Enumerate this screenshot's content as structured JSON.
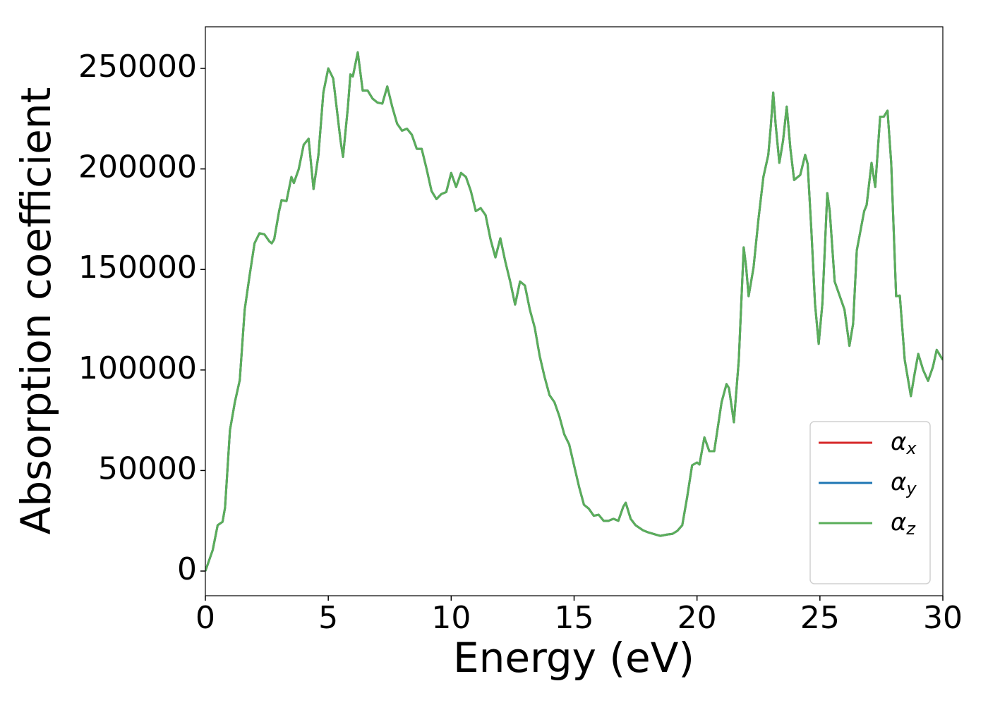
{
  "chart_data": {
    "type": "line",
    "xlabel": "Energy (eV)",
    "ylabel": "Absorption coefficient",
    "xlim": [
      0,
      30
    ],
    "xticks": [
      0,
      5,
      10,
      15,
      20,
      25,
      30
    ],
    "ylim": [
      -12270,
      270690
    ],
    "yticks": [
      0,
      50000,
      100000,
      150000,
      200000,
      250000
    ],
    "legend": "lower right",
    "x": [
      0,
      0.3,
      0.5,
      0.7,
      0.8,
      1.0,
      1.2,
      1.4,
      1.6,
      1.8,
      2.0,
      2.2,
      2.4,
      2.6,
      2.7,
      2.8,
      3.0,
      3.1,
      3.3,
      3.5,
      3.6,
      3.8,
      4.0,
      4.2,
      4.4,
      4.6,
      4.8,
      5.0,
      5.2,
      5.5,
      5.6,
      5.8,
      5.9,
      6.0,
      6.2,
      6.4,
      6.6,
      6.8,
      7.0,
      7.2,
      7.4,
      7.6,
      7.8,
      8.0,
      8.2,
      8.4,
      8.6,
      8.8,
      9.0,
      9.2,
      9.4,
      9.6,
      9.8,
      10.0,
      10.2,
      10.4,
      10.6,
      10.8,
      11.0,
      11.2,
      11.4,
      11.6,
      11.8,
      12.0,
      12.2,
      12.4,
      12.6,
      12.8,
      13.0,
      13.2,
      13.4,
      13.6,
      13.8,
      14.0,
      14.2,
      14.4,
      14.6,
      14.8,
      15.0,
      15.2,
      15.4,
      15.6,
      15.8,
      16.0,
      16.2,
      16.4,
      16.6,
      16.8,
      17.0,
      17.1,
      17.3,
      17.5,
      17.8,
      18.0,
      18.3,
      18.5,
      18.8,
      19.0,
      19.2,
      19.4,
      19.6,
      19.8,
      20.0,
      20.1,
      20.3,
      20.5,
      20.7,
      21.0,
      21.2,
      21.3,
      21.5,
      21.7,
      21.9,
      22.0,
      22.1,
      22.3,
      22.5,
      22.7,
      22.9,
      23.0,
      23.1,
      23.2,
      23.35,
      23.5,
      23.65,
      23.8,
      23.95,
      24.2,
      24.4,
      24.5,
      24.65,
      24.8,
      24.95,
      25.1,
      25.3,
      25.4,
      25.6,
      25.8,
      26.0,
      26.2,
      26.35,
      26.5,
      26.8,
      26.9,
      27.1,
      27.25,
      27.45,
      27.6,
      27.75,
      27.9,
      28.1,
      28.25,
      28.45,
      28.7,
      28.85,
      29.0,
      29.2,
      29.4,
      29.6,
      29.75,
      30.0
    ],
    "series": [
      {
        "name": "αx",
        "color": "#d62728",
        "values": [
          0,
          10500,
          22800,
          24500,
          31500,
          70000,
          84000,
          95000,
          130000,
          147000,
          163000,
          168000,
          167500,
          164000,
          163000,
          165000,
          179000,
          184500,
          184000,
          196000,
          193000,
          200000,
          212000,
          215000,
          190000,
          207000,
          238000,
          250000,
          245000,
          214000,
          206000,
          231000,
          247000,
          246000,
          258000,
          239000,
          239000,
          235000,
          233000,
          232500,
          241000,
          231000,
          222500,
          219000,
          220000,
          217000,
          210000,
          210000,
          200000,
          189000,
          185000,
          187500,
          188500,
          198000,
          191000,
          198000,
          196000,
          189000,
          179000,
          180500,
          177000,
          165000,
          156000,
          165500,
          154000,
          144000,
          132500,
          144000,
          142000,
          130000,
          121000,
          107000,
          96500,
          87500,
          84000,
          77000,
          68000,
          63000,
          52500,
          42000,
          33000,
          31000,
          27500,
          28000,
          25000,
          25000,
          26000,
          25000,
          32000,
          34000,
          26000,
          22800,
          20300,
          19300,
          18200,
          17500,
          18200,
          18500,
          20000,
          22800,
          36800,
          52600,
          54000,
          53000,
          66500,
          59600,
          59600,
          84000,
          93000,
          91000,
          74000,
          105000,
          161000,
          151000,
          136700,
          151000,
          175000,
          196000,
          207000,
          221000,
          238000,
          222000,
          203000,
          214000,
          231000,
          210000,
          194500,
          197000,
          207000,
          202600,
          170000,
          133000,
          113000,
          133000,
          188000,
          179000,
          144000,
          137000,
          130000,
          112000,
          123000,
          159500,
          179000,
          182000,
          203000,
          191000,
          226000,
          226000,
          229000,
          203000,
          136700,
          137000,
          105000,
          87000,
          98000,
          108000,
          100000,
          94600,
          101700,
          110000,
          105000
        ]
      },
      {
        "name": "αy",
        "color": "#1f77b4",
        "values": [
          0,
          10500,
          22800,
          24500,
          31500,
          70000,
          84000,
          95000,
          130000,
          147000,
          163000,
          168000,
          167500,
          164000,
          163000,
          165000,
          179000,
          184500,
          184000,
          196000,
          193000,
          200000,
          212000,
          215000,
          190000,
          207000,
          238000,
          250000,
          245000,
          214000,
          206000,
          231000,
          247000,
          246000,
          258000,
          239000,
          239000,
          235000,
          233000,
          232500,
          241000,
          231000,
          222500,
          219000,
          220000,
          217000,
          210000,
          210000,
          200000,
          189000,
          185000,
          187500,
          188500,
          198000,
          191000,
          198000,
          196000,
          189000,
          179000,
          180500,
          177000,
          165000,
          156000,
          165500,
          154000,
          144000,
          132500,
          144000,
          142000,
          130000,
          121000,
          107000,
          96500,
          87500,
          84000,
          77000,
          68000,
          63000,
          52500,
          42000,
          33000,
          31000,
          27500,
          28000,
          25000,
          25000,
          26000,
          25000,
          32000,
          34000,
          26000,
          22800,
          20300,
          19300,
          18200,
          17500,
          18200,
          18500,
          20000,
          22800,
          36800,
          52600,
          54000,
          53000,
          66500,
          59600,
          59600,
          84000,
          93000,
          91000,
          74000,
          105000,
          161000,
          151000,
          136700,
          151000,
          175000,
          196000,
          207000,
          221000,
          238000,
          222000,
          203000,
          214000,
          231000,
          210000,
          194500,
          197000,
          207000,
          202600,
          170000,
          133000,
          113000,
          133000,
          188000,
          179000,
          144000,
          137000,
          130000,
          112000,
          123000,
          159500,
          179000,
          182000,
          203000,
          191000,
          226000,
          226000,
          229000,
          203000,
          136700,
          137000,
          105000,
          87000,
          98000,
          108000,
          100000,
          94600,
          101700,
          110000,
          105000
        ]
      },
      {
        "name": "αz",
        "color": "#5aae5a",
        "values": [
          0,
          10500,
          22800,
          24500,
          31500,
          70000,
          84000,
          95000,
          130000,
          147000,
          163000,
          168000,
          167500,
          164000,
          163000,
          165000,
          179000,
          184500,
          184000,
          196000,
          193000,
          200000,
          212000,
          215000,
          190000,
          207000,
          238000,
          250000,
          245000,
          214000,
          206000,
          231000,
          247000,
          246000,
          258000,
          239000,
          239000,
          235000,
          233000,
          232500,
          241000,
          231000,
          222500,
          219000,
          220000,
          217000,
          210000,
          210000,
          200000,
          189000,
          185000,
          187500,
          188500,
          198000,
          191000,
          198000,
          196000,
          189000,
          179000,
          180500,
          177000,
          165000,
          156000,
          165500,
          154000,
          144000,
          132500,
          144000,
          142000,
          130000,
          121000,
          107000,
          96500,
          87500,
          84000,
          77000,
          68000,
          63000,
          52500,
          42000,
          33000,
          31000,
          27500,
          28000,
          25000,
          25000,
          26000,
          25000,
          32000,
          34000,
          26000,
          22800,
          20300,
          19300,
          18200,
          17500,
          18200,
          18500,
          20000,
          22800,
          36800,
          52600,
          54000,
          53000,
          66500,
          59600,
          59600,
          84000,
          93000,
          91000,
          74000,
          105000,
          161000,
          151000,
          136700,
          151000,
          175000,
          196000,
          207000,
          221000,
          238000,
          222000,
          203000,
          214000,
          231000,
          210000,
          194500,
          197000,
          207000,
          202600,
          170000,
          133000,
          113000,
          133000,
          188000,
          179000,
          144000,
          137000,
          130000,
          112000,
          123000,
          159500,
          179000,
          182000,
          203000,
          191000,
          226000,
          226000,
          229000,
          203000,
          136700,
          137000,
          105000,
          87000,
          98000,
          108000,
          100000,
          94600,
          101700,
          110000,
          105000
        ]
      }
    ]
  }
}
